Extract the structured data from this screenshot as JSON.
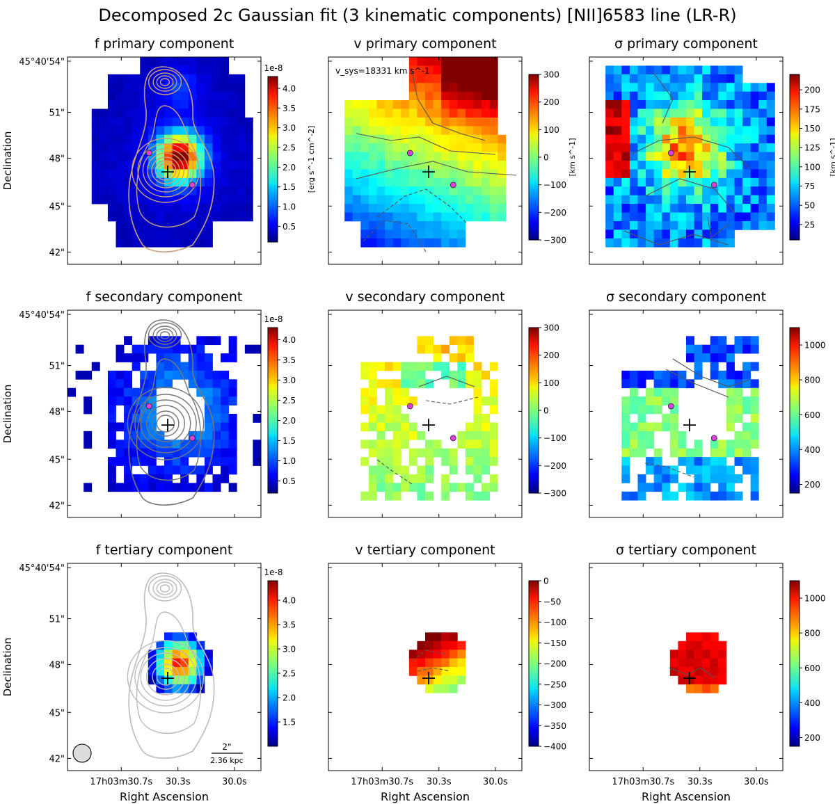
{
  "figure": {
    "title": "Decomposed 2c Gaussian fit (3 kinematic components) [NII]6583 line (LR-R)"
  },
  "axes_text": {
    "ylabel": "Declination",
    "xlabel": "Right Ascension",
    "dec_ticks": [
      "45°40'54\"",
      "51\"",
      "48\"",
      "45\"",
      "42\""
    ],
    "ra_ticks": [
      "17h03m30.7s",
      "30.3s",
      "30.0s"
    ]
  },
  "annotations": {
    "vsys": "v_sys=18331 km s^-1",
    "scalebar_arcsec": "2\"",
    "scalebar_kpc": "2.36 kpc"
  },
  "chart_data": [
    {
      "type": "heatmap",
      "row": 0,
      "col": 0,
      "pattern": "flux_primary",
      "title": "f primary component",
      "colormap": "jet",
      "colorbar": {
        "range": [
          0.1,
          4.3
        ],
        "ticks": [
          "0.5",
          "1.0",
          "1.5",
          "2.0",
          "2.5",
          "3.0",
          "3.5",
          "4.0"
        ],
        "tick_values": [
          0.5,
          1.0,
          1.5,
          2.0,
          2.5,
          3.0,
          3.5,
          4.0
        ],
        "offset": "1e-8",
        "label": "[erg s^-1 cm^-2]"
      },
      "contour_color": "#c8a080",
      "markers": true,
      "cross": true
    },
    {
      "type": "heatmap",
      "row": 0,
      "col": 1,
      "pattern": "vel_primary",
      "title": "v primary component",
      "colormap": "jet",
      "colorbar": {
        "range": [
          -300,
          300
        ],
        "ticks": [
          "300",
          "200",
          "100",
          "0",
          "−100",
          "−200",
          "−300"
        ],
        "tick_values": [
          300,
          200,
          100,
          0,
          -100,
          -200,
          -300
        ],
        "offset": "",
        "label": "[km s^-1]"
      },
      "markers": true,
      "cross": true,
      "vsys": true
    },
    {
      "type": "heatmap",
      "row": 0,
      "col": 2,
      "pattern": "sig_primary",
      "title": "σ primary component",
      "colormap": "jet",
      "colorbar": {
        "range": [
          5,
          220
        ],
        "ticks": [
          "200",
          "175",
          "150",
          "125",
          "100",
          "75",
          "50",
          "25"
        ],
        "tick_values": [
          200,
          175,
          150,
          125,
          100,
          75,
          50,
          25
        ],
        "offset": "",
        "label": "[km s^-1]"
      },
      "markers": true,
      "cross": true
    },
    {
      "type": "heatmap",
      "row": 1,
      "col": 0,
      "pattern": "flux_secondary",
      "title": "f secondary component",
      "colormap": "jet",
      "colorbar": {
        "range": [
          0.2,
          4.3
        ],
        "ticks": [
          "0.5",
          "1.0",
          "1.5",
          "2.0",
          "2.5",
          "3.0",
          "3.5",
          "4.0"
        ],
        "tick_values": [
          0.5,
          1.0,
          1.5,
          2.0,
          2.5,
          3.0,
          3.5,
          4.0
        ],
        "offset": "1e-8",
        "label": ""
      },
      "contour_color": "#777777",
      "markers": true,
      "cross": true
    },
    {
      "type": "heatmap",
      "row": 1,
      "col": 1,
      "pattern": "vel_secondary",
      "title": "v secondary component",
      "colormap": "jet",
      "colorbar": {
        "range": [
          -300,
          300
        ],
        "ticks": [
          "300",
          "200",
          "100",
          "0",
          "−100",
          "−200",
          "−300"
        ],
        "tick_values": [
          300,
          200,
          100,
          0,
          -100,
          -200,
          -300
        ],
        "offset": "",
        "label": ""
      },
      "markers": true,
      "cross": true
    },
    {
      "type": "heatmap",
      "row": 1,
      "col": 2,
      "pattern": "sig_secondary",
      "title": "σ secondary component",
      "colormap": "jet",
      "colorbar": {
        "range": [
          150,
          1100
        ],
        "ticks": [
          "1000",
          "800",
          "600",
          "400",
          "200"
        ],
        "tick_values": [
          1000,
          800,
          600,
          400,
          200
        ],
        "offset": "",
        "label": ""
      },
      "markers": true,
      "cross": true
    },
    {
      "type": "heatmap",
      "row": 2,
      "col": 0,
      "pattern": "flux_tertiary",
      "title": "f tertiary component",
      "colormap": "jet",
      "colorbar": {
        "range": [
          1.0,
          4.4
        ],
        "ticks": [
          "1.5",
          "2.0",
          "2.5",
          "3.0",
          "3.5",
          "4.0"
        ],
        "tick_values": [
          1.5,
          2.0,
          2.5,
          3.0,
          3.5,
          4.0
        ],
        "offset": "1e-8",
        "label": ""
      },
      "contour_color": "#bbbbbb",
      "markers": false,
      "cross": true,
      "beam": true,
      "scalebar": true
    },
    {
      "type": "heatmap",
      "row": 2,
      "col": 1,
      "pattern": "vel_tertiary",
      "title": "v tertiary component",
      "colormap": "jet",
      "colorbar": {
        "range": [
          -400,
          0
        ],
        "ticks": [
          "0",
          "−50",
          "−100",
          "−150",
          "−200",
          "−250",
          "−300",
          "−350",
          "−400"
        ],
        "tick_values": [
          0,
          -50,
          -100,
          -150,
          -200,
          -250,
          -300,
          -350,
          -400
        ],
        "offset": "",
        "label": ""
      },
      "markers": false,
      "cross": true
    },
    {
      "type": "heatmap",
      "row": 2,
      "col": 2,
      "pattern": "sig_tertiary",
      "title": "σ tertiary component",
      "colormap": "jet",
      "colorbar": {
        "range": [
          150,
          1100
        ],
        "ticks": [
          "1000",
          "800",
          "600",
          "400",
          "200"
        ],
        "tick_values": [
          1000,
          800,
          600,
          400,
          200
        ],
        "offset": "",
        "label": ""
      },
      "markers": false,
      "cross": true
    }
  ]
}
